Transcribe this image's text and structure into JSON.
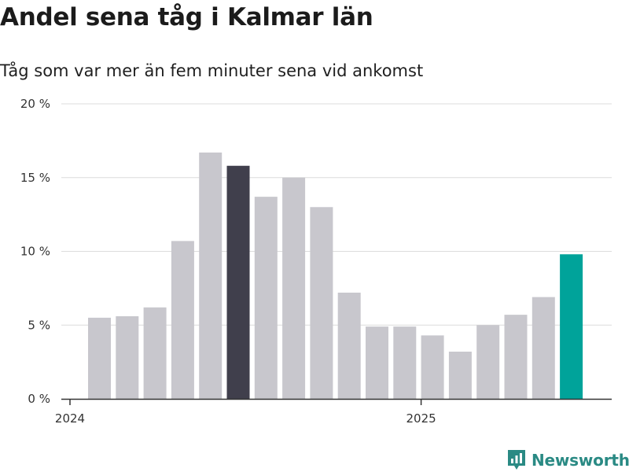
{
  "chart_data": {
    "type": "bar",
    "title": "Andel sena tåg i Kalmar län",
    "subtitle": "Tåg som var mer än fem minuter sena vid ankomst",
    "ylim": [
      0,
      20
    ],
    "y_ticks": [
      0,
      5,
      10,
      15,
      20
    ],
    "y_tick_labels": [
      "0 %",
      "5 %",
      "10 %",
      "15 %",
      "20 %"
    ],
    "x_tick_labels": [
      {
        "label": "2024",
        "at_index": 0
      },
      {
        "label": "2025",
        "at_index": 12
      }
    ],
    "grid": true,
    "values": [
      5.5,
      5.6,
      6.2,
      10.7,
      16.7,
      15.8,
      13.7,
      15.0,
      13.0,
      7.2,
      4.9,
      4.9,
      4.3,
      3.2,
      5.0,
      5.7,
      6.9,
      9.8
    ],
    "colors": {
      "default": "#c8c7cd",
      "highlight_dark": "#403f4c",
      "highlight_latest": "#00a39a",
      "axis": "#333333",
      "grid": "#dcdcdc"
    },
    "highlight_dark_index": 5,
    "highlight_latest_index": 17
  },
  "brand": {
    "name": "Newsworthy",
    "icon": "chart-bubble-icon",
    "color": "#2a8a84"
  }
}
